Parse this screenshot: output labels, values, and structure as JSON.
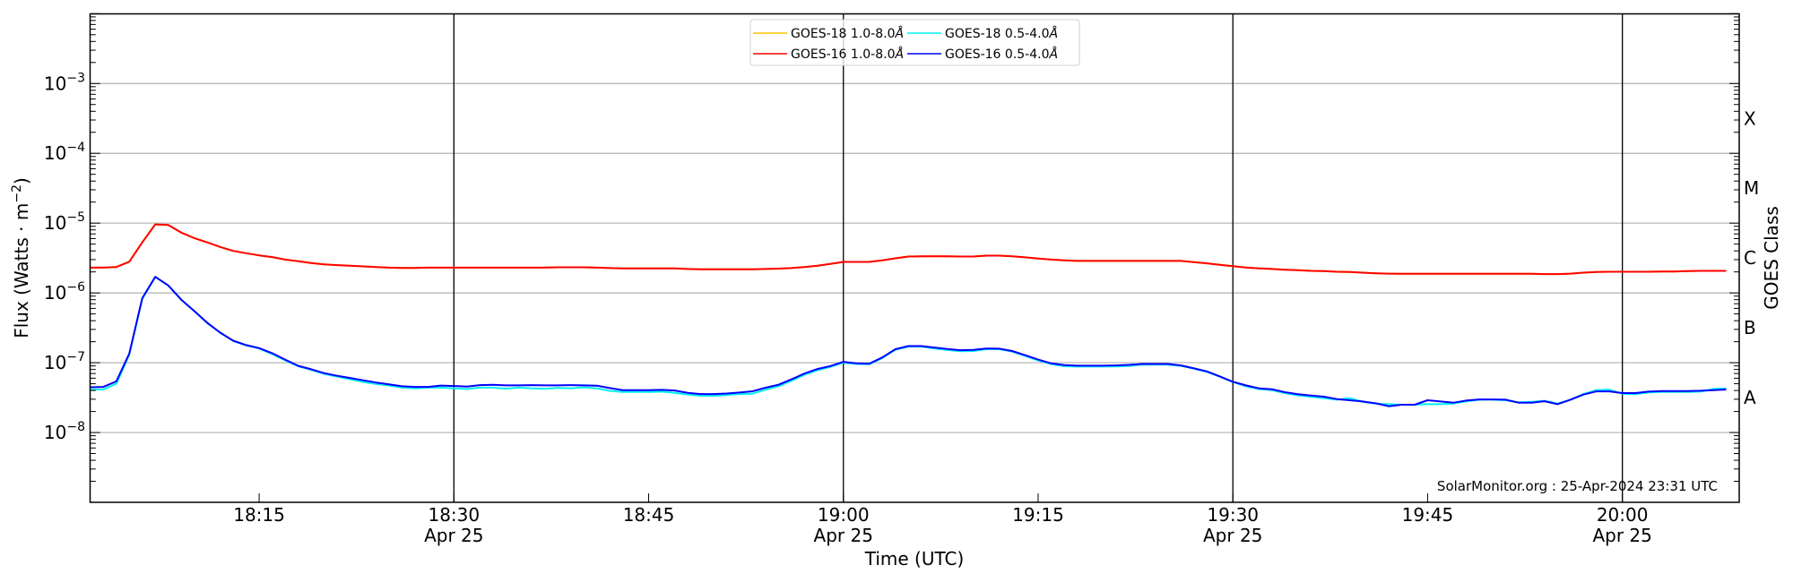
{
  "chart_data": {
    "type": "line",
    "title": "",
    "xlabel": "Time (UTC)",
    "ylabel": {
      "text": "Flux (Watts · m",
      "exp": "−2",
      "close": ")"
    },
    "y2label": "GOES Class",
    "yscale": "log",
    "ylim": [
      1e-09,
      0.01
    ],
    "xlim": [
      "18:02",
      "20:09"
    ],
    "grid": "horizontal at each decade",
    "legend_placement": "top-center",
    "y_ticks": [
      {
        "value": 1e-08,
        "base": "10",
        "exp": "−8"
      },
      {
        "value": 1e-07,
        "base": "10",
        "exp": "−7"
      },
      {
        "value": 1e-06,
        "base": "10",
        "exp": "−6"
      },
      {
        "value": 1e-05,
        "base": "10",
        "exp": "−5"
      },
      {
        "value": 0.0001,
        "base": "10",
        "exp": "−4"
      },
      {
        "value": 0.001,
        "base": "10",
        "exp": "−3"
      }
    ],
    "class_labels": [
      {
        "label": "A",
        "value": 3.16e-08
      },
      {
        "label": "B",
        "value": 3.16e-07
      },
      {
        "label": "C",
        "value": 3.16e-06
      },
      {
        "label": "M",
        "value": 3.16e-05
      },
      {
        "label": "X",
        "value": 0.000316
      }
    ],
    "x_ticks": [
      {
        "time": "18:15",
        "label": "18:15",
        "date": ""
      },
      {
        "time": "18:30",
        "label": "18:30",
        "date": "Apr 25"
      },
      {
        "time": "18:45",
        "label": "18:45",
        "date": ""
      },
      {
        "time": "19:00",
        "label": "19:00",
        "date": "Apr 25"
      },
      {
        "time": "19:15",
        "label": "19:15",
        "date": ""
      },
      {
        "time": "19:30",
        "label": "19:30",
        "date": "Apr 25"
      },
      {
        "time": "19:45",
        "label": "19:45",
        "date": ""
      },
      {
        "time": "20:00",
        "label": "20:00",
        "date": "Apr 25"
      }
    ],
    "vertical_lines": [
      "18:30",
      "19:00",
      "19:30",
      "20:00"
    ],
    "annotation": "SolarMonitor.org : 25-Apr-2024 23:31 UTC",
    "x": [
      "18:02",
      "18:03",
      "18:04",
      "18:05",
      "18:06",
      "18:07",
      "18:08",
      "18:09",
      "18:10",
      "18:11",
      "18:12",
      "18:13",
      "18:14",
      "18:15",
      "18:16",
      "18:17",
      "18:18",
      "18:19",
      "18:20",
      "18:21",
      "18:22",
      "18:23",
      "18:24",
      "18:25",
      "18:26",
      "18:27",
      "18:28",
      "18:29",
      "18:30",
      "18:31",
      "18:32",
      "18:33",
      "18:34",
      "18:35",
      "18:36",
      "18:37",
      "18:38",
      "18:39",
      "18:40",
      "18:41",
      "18:42",
      "18:43",
      "18:44",
      "18:45",
      "18:46",
      "18:47",
      "18:48",
      "18:49",
      "18:50",
      "18:51",
      "18:52",
      "18:53",
      "18:54",
      "18:55",
      "18:56",
      "18:57",
      "18:58",
      "18:59",
      "19:00",
      "19:01",
      "19:02",
      "19:03",
      "19:04",
      "19:05",
      "19:06",
      "19:07",
      "19:08",
      "19:09",
      "19:10",
      "19:11",
      "19:12",
      "19:13",
      "19:14",
      "19:15",
      "19:16",
      "19:17",
      "19:18",
      "19:19",
      "19:20",
      "19:21",
      "19:22",
      "19:23",
      "19:24",
      "19:25",
      "19:26",
      "19:27",
      "19:28",
      "19:29",
      "19:30",
      "19:31",
      "19:32",
      "19:33",
      "19:34",
      "19:35",
      "19:36",
      "19:37",
      "19:38",
      "19:39",
      "19:40",
      "19:41",
      "19:42",
      "19:43",
      "19:44",
      "19:45",
      "19:46",
      "19:47",
      "19:48",
      "19:49",
      "19:50",
      "19:51",
      "19:52",
      "19:53",
      "19:54",
      "19:55",
      "19:56",
      "19:57",
      "19:58",
      "19:59",
      "20:00",
      "20:01",
      "20:02",
      "20:03",
      "20:04",
      "20:05",
      "20:06",
      "20:07",
      "20:08"
    ],
    "series": [
      {
        "name": "GOES-18 1.0-8.0",
        "unit": "Å",
        "color": "#ffc400",
        "values": [
          2.3e-06,
          2.3e-06,
          2.35e-06,
          2.8e-06,
          5.3e-06,
          9.6e-06,
          9.4e-06,
          7.3e-06,
          6.1e-06,
          5.3e-06,
          4.55e-06,
          4e-06,
          3.7e-06,
          3.45e-06,
          3.26e-06,
          3e-06,
          2.85e-06,
          2.68e-06,
          2.57e-06,
          2.5e-06,
          2.45e-06,
          2.4e-06,
          2.35e-06,
          2.3e-06,
          2.28e-06,
          2.28e-06,
          2.3e-06,
          2.3e-06,
          2.3e-06,
          2.3e-06,
          2.3e-06,
          2.3e-06,
          2.3e-06,
          2.3e-06,
          2.3e-06,
          2.3e-06,
          2.33e-06,
          2.33e-06,
          2.33e-06,
          2.3e-06,
          2.27e-06,
          2.24e-06,
          2.24e-06,
          2.24e-06,
          2.24e-06,
          2.24e-06,
          2.2e-06,
          2.18e-06,
          2.18e-06,
          2.18e-06,
          2.18e-06,
          2.18e-06,
          2.2e-06,
          2.23e-06,
          2.27e-06,
          2.35e-06,
          2.45e-06,
          2.6e-06,
          2.78e-06,
          2.78e-06,
          2.78e-06,
          2.92e-06,
          3.13e-06,
          3.32e-06,
          3.35e-06,
          3.35e-06,
          3.35e-06,
          3.32e-06,
          3.32e-06,
          3.42e-06,
          3.42e-06,
          3.35e-06,
          3.23e-06,
          3.1e-06,
          3e-06,
          2.92e-06,
          2.87e-06,
          2.87e-06,
          2.87e-06,
          2.87e-06,
          2.87e-06,
          2.87e-06,
          2.87e-06,
          2.87e-06,
          2.87e-06,
          2.76e-06,
          2.65e-06,
          2.52e-06,
          2.42e-06,
          2.31e-06,
          2.24e-06,
          2.2e-06,
          2.15e-06,
          2.11e-06,
          2.07e-06,
          2.05e-06,
          2.01e-06,
          1.99e-06,
          1.95e-06,
          1.91e-06,
          1.89e-06,
          1.88e-06,
          1.88e-06,
          1.88e-06,
          1.88e-06,
          1.88e-06,
          1.88e-06,
          1.88e-06,
          1.88e-06,
          1.88e-06,
          1.88e-06,
          1.88e-06,
          1.86e-06,
          1.86e-06,
          1.89e-06,
          1.95e-06,
          1.99e-06,
          2.01e-06,
          2.01e-06,
          2.01e-06,
          2.01e-06,
          2.03e-06,
          2.03e-06,
          2.05e-06,
          2.07e-06,
          2.07e-06,
          2.07e-06
        ]
      },
      {
        "name": "GOES-16 1.0-8.0",
        "unit": "Å",
        "color": "#ff0000",
        "values": [
          2.3e-06,
          2.3e-06,
          2.35e-06,
          2.8e-06,
          5.3e-06,
          9.6e-06,
          9.4e-06,
          7.3e-06,
          6.1e-06,
          5.3e-06,
          4.55e-06,
          4e-06,
          3.7e-06,
          3.45e-06,
          3.26e-06,
          3e-06,
          2.85e-06,
          2.68e-06,
          2.57e-06,
          2.5e-06,
          2.45e-06,
          2.4e-06,
          2.35e-06,
          2.3e-06,
          2.28e-06,
          2.28e-06,
          2.3e-06,
          2.3e-06,
          2.3e-06,
          2.3e-06,
          2.3e-06,
          2.3e-06,
          2.3e-06,
          2.3e-06,
          2.3e-06,
          2.3e-06,
          2.33e-06,
          2.33e-06,
          2.33e-06,
          2.3e-06,
          2.27e-06,
          2.24e-06,
          2.24e-06,
          2.24e-06,
          2.24e-06,
          2.24e-06,
          2.2e-06,
          2.18e-06,
          2.18e-06,
          2.18e-06,
          2.18e-06,
          2.18e-06,
          2.2e-06,
          2.23e-06,
          2.27e-06,
          2.35e-06,
          2.45e-06,
          2.6e-06,
          2.78e-06,
          2.78e-06,
          2.78e-06,
          2.92e-06,
          3.13e-06,
          3.32e-06,
          3.35e-06,
          3.35e-06,
          3.35e-06,
          3.32e-06,
          3.32e-06,
          3.42e-06,
          3.42e-06,
          3.35e-06,
          3.23e-06,
          3.1e-06,
          3e-06,
          2.92e-06,
          2.87e-06,
          2.87e-06,
          2.87e-06,
          2.87e-06,
          2.87e-06,
          2.87e-06,
          2.87e-06,
          2.87e-06,
          2.87e-06,
          2.76e-06,
          2.65e-06,
          2.52e-06,
          2.42e-06,
          2.31e-06,
          2.24e-06,
          2.2e-06,
          2.15e-06,
          2.11e-06,
          2.07e-06,
          2.05e-06,
          2.01e-06,
          1.99e-06,
          1.95e-06,
          1.91e-06,
          1.89e-06,
          1.88e-06,
          1.88e-06,
          1.88e-06,
          1.88e-06,
          1.88e-06,
          1.88e-06,
          1.88e-06,
          1.88e-06,
          1.88e-06,
          1.88e-06,
          1.88e-06,
          1.86e-06,
          1.86e-06,
          1.89e-06,
          1.95e-06,
          1.99e-06,
          2.01e-06,
          2.01e-06,
          2.01e-06,
          2.01e-06,
          2.03e-06,
          2.03e-06,
          2.05e-06,
          2.07e-06,
          2.07e-06,
          2.07e-06
        ]
      },
      {
        "name": "GOES-18 0.5-4.0",
        "unit": "Å",
        "color": "#00f0f0",
        "values": [
          4.1e-08,
          4.15e-08,
          5e-08,
          1.3e-07,
          8.2e-07,
          1.7e-06,
          1.27e-06,
          8e-07,
          5.5e-07,
          3.7e-07,
          2.7e-07,
          2.05e-07,
          1.77e-07,
          1.6e-07,
          1.33e-07,
          1.08e-07,
          8.9e-08,
          7.9e-08,
          6.9e-08,
          6.3e-08,
          5.8e-08,
          5.3e-08,
          4.95e-08,
          4.7e-08,
          4.4e-08,
          4.3e-08,
          4.4e-08,
          4.4e-08,
          4.3e-08,
          4.2e-08,
          4.4e-08,
          4.4e-08,
          4.25e-08,
          4.4e-08,
          4.3e-08,
          4.25e-08,
          4.35e-08,
          4.3e-08,
          4.45e-08,
          4.3e-08,
          3.95e-08,
          3.8e-08,
          3.8e-08,
          3.8e-08,
          3.85e-08,
          3.7e-08,
          3.5e-08,
          3.36e-08,
          3.36e-08,
          3.45e-08,
          3.55e-08,
          3.6e-08,
          4.1e-08,
          4.6e-08,
          5.5e-08,
          6.7e-08,
          7.8e-08,
          8.7e-08,
          1e-07,
          9.6e-08,
          9.5e-08,
          1.17e-07,
          1.53e-07,
          1.7e-07,
          1.7e-07,
          1.6e-07,
          1.52e-07,
          1.46e-07,
          1.47e-07,
          1.56e-07,
          1.56e-07,
          1.44e-07,
          1.25e-07,
          1.08e-07,
          9.5e-08,
          8.9e-08,
          8.8e-08,
          8.8e-08,
          8.8e-08,
          8.85e-08,
          9e-08,
          9.4e-08,
          9.4e-08,
          9.4e-08,
          9e-08,
          8.2e-08,
          7.4e-08,
          6.3e-08,
          5.3e-08,
          4.6e-08,
          4.2e-08,
          4.05e-08,
          3.65e-08,
          3.4e-08,
          3.25e-08,
          3.1e-08,
          2.95e-08,
          3.1e-08,
          2.75e-08,
          2.6e-08,
          2.55e-08,
          2.5e-08,
          2.5e-08,
          2.55e-08,
          2.55e-08,
          2.6e-08,
          2.8e-08,
          2.95e-08,
          2.95e-08,
          2.9e-08,
          2.7e-08,
          2.75e-08,
          2.85e-08,
          2.6e-08,
          2.95e-08,
          3.55e-08,
          4.05e-08,
          4.1e-08,
          3.6e-08,
          3.53e-08,
          3.74e-08,
          3.8e-08,
          3.81e-08,
          3.81e-08,
          3.85e-08,
          4.21e-08,
          4.29e-08
        ]
      },
      {
        "name": "GOES-16 0.5-4.0",
        "unit": "Å",
        "color": "#0000ff",
        "values": [
          4.45e-08,
          4.5e-08,
          5.4e-08,
          1.35e-07,
          8.4e-07,
          1.7e-06,
          1.28e-06,
          8e-07,
          5.5e-07,
          3.74e-07,
          2.7e-07,
          2.07e-07,
          1.79e-07,
          1.62e-07,
          1.37e-07,
          1.11e-07,
          9.05e-08,
          8.05e-08,
          7.1e-08,
          6.5e-08,
          6.05e-08,
          5.6e-08,
          5.2e-08,
          4.9e-08,
          4.6e-08,
          4.5e-08,
          4.5e-08,
          4.7e-08,
          4.64e-08,
          4.55e-08,
          4.78e-08,
          4.83e-08,
          4.74e-08,
          4.74e-08,
          4.78e-08,
          4.74e-08,
          4.74e-08,
          4.78e-08,
          4.74e-08,
          4.69e-08,
          4.33e-08,
          4.05e-08,
          4.05e-08,
          4.05e-08,
          4.09e-08,
          4e-08,
          3.7e-08,
          3.55e-08,
          3.55e-08,
          3.62e-08,
          3.74e-08,
          3.9e-08,
          4.38e-08,
          4.83e-08,
          5.77e-08,
          7e-08,
          8.13e-08,
          8.97e-08,
          1.03e-07,
          9.8e-08,
          9.7e-08,
          1.19e-07,
          1.56e-07,
          1.73e-07,
          1.73e-07,
          1.65e-07,
          1.57e-07,
          1.51e-07,
          1.53e-07,
          1.6e-07,
          1.59e-07,
          1.47e-07,
          1.28e-07,
          1.11e-07,
          9.8e-08,
          9.24e-08,
          9.07e-08,
          9.07e-08,
          9.07e-08,
          9.15e-08,
          9.3e-08,
          9.6e-08,
          9.6e-08,
          9.6e-08,
          9.15e-08,
          8.3e-08,
          7.5e-08,
          6.36e-08,
          5.33e-08,
          4.73e-08,
          4.29e-08,
          4.17e-08,
          3.78e-08,
          3.53e-08,
          3.39e-08,
          3.26e-08,
          3.01e-08,
          2.9e-08,
          2.78e-08,
          2.62e-08,
          2.38e-08,
          2.5e-08,
          2.5e-08,
          2.9e-08,
          2.78e-08,
          2.68e-08,
          2.87e-08,
          2.98e-08,
          2.98e-08,
          2.95e-08,
          2.68e-08,
          2.68e-08,
          2.81e-08,
          2.55e-08,
          2.95e-08,
          3.49e-08,
          3.89e-08,
          3.89e-08,
          3.67e-08,
          3.67e-08,
          3.85e-08,
          3.93e-08,
          3.93e-08,
          3.93e-08,
          3.97e-08,
          4.05e-08,
          4.13e-08
        ]
      }
    ]
  }
}
